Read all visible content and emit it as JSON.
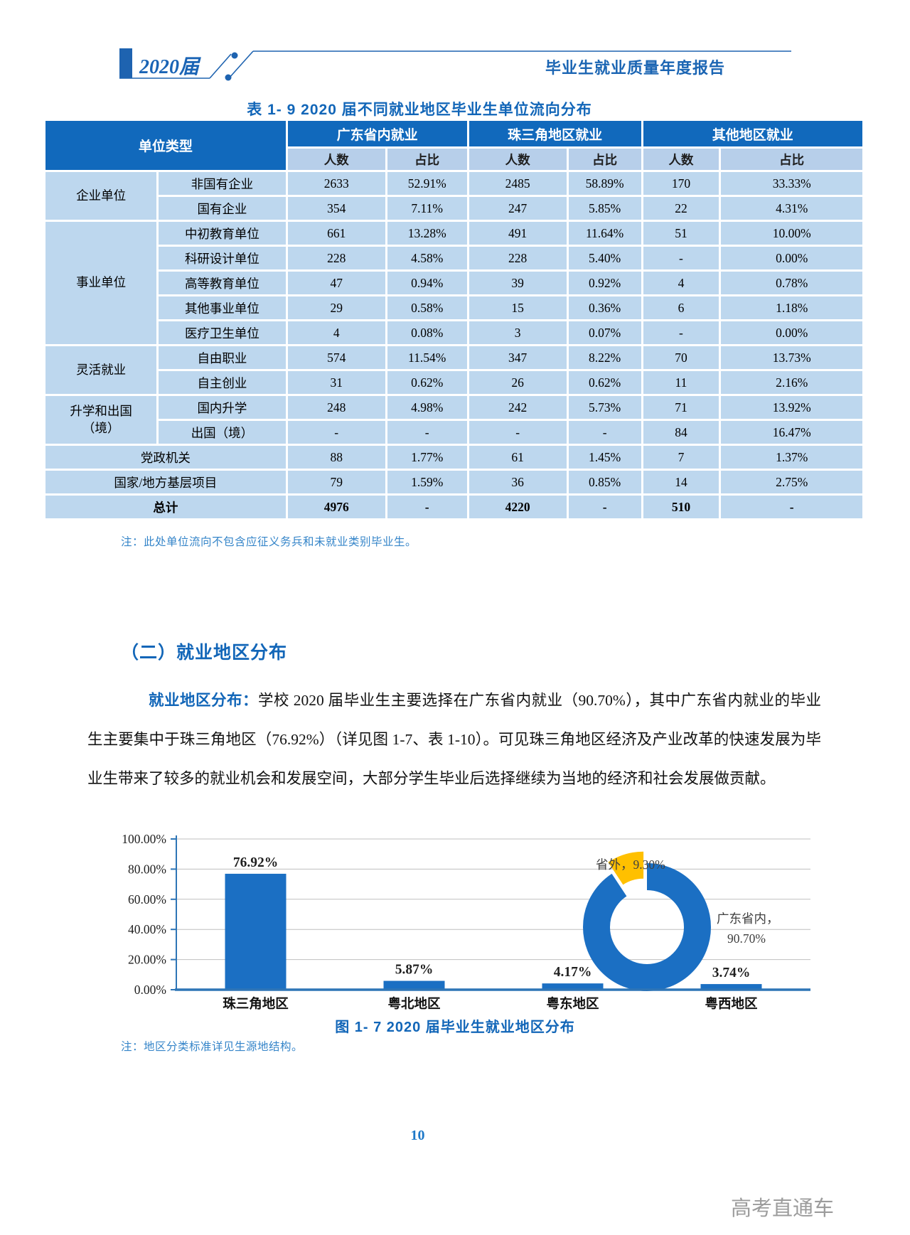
{
  "header": {
    "year_badge": "2020届",
    "report_title": "毕业生就业质量年度报告"
  },
  "table": {
    "title": "表 1- 9  2020 届不同就业地区毕业生单位流向分布",
    "corner_header": "单位类型",
    "group_headers": [
      "广东省内就业",
      "珠三角地区就业",
      "其他地区就业"
    ],
    "sub_headers": [
      "人数",
      "占比"
    ],
    "rows": [
      {
        "category": "企业单位",
        "category_span": 2,
        "label": "非国有企业",
        "values": [
          "2633",
          "52.91%",
          "2485",
          "58.89%",
          "170",
          "33.33%"
        ]
      },
      {
        "label": "国有企业",
        "values": [
          "354",
          "7.11%",
          "247",
          "5.85%",
          "22",
          "4.31%"
        ]
      },
      {
        "category": "事业单位",
        "category_span": 5,
        "label": "中初教育单位",
        "values": [
          "661",
          "13.28%",
          "491",
          "11.64%",
          "51",
          "10.00%"
        ]
      },
      {
        "label": "科研设计单位",
        "values": [
          "228",
          "4.58%",
          "228",
          "5.40%",
          "-",
          "0.00%"
        ]
      },
      {
        "label": "高等教育单位",
        "values": [
          "47",
          "0.94%",
          "39",
          "0.92%",
          "4",
          "0.78%"
        ]
      },
      {
        "label": "其他事业单位",
        "values": [
          "29",
          "0.58%",
          "15",
          "0.36%",
          "6",
          "1.18%"
        ]
      },
      {
        "label": "医疗卫生单位",
        "values": [
          "4",
          "0.08%",
          "3",
          "0.07%",
          "-",
          "0.00%"
        ]
      },
      {
        "category": "灵活就业",
        "category_span": 2,
        "label": "自由职业",
        "values": [
          "574",
          "11.54%",
          "347",
          "8.22%",
          "70",
          "13.73%"
        ]
      },
      {
        "label": "自主创业",
        "values": [
          "31",
          "0.62%",
          "26",
          "0.62%",
          "11",
          "2.16%"
        ]
      },
      {
        "category": "升学和出国\n（境）",
        "category_span": 2,
        "label": "国内升学",
        "values": [
          "248",
          "4.98%",
          "242",
          "5.73%",
          "71",
          "13.92%"
        ]
      },
      {
        "label": "出国（境）",
        "values": [
          "-",
          "-",
          "-",
          "-",
          "84",
          "16.47%"
        ]
      },
      {
        "label": "党政机关",
        "full_width": true,
        "values": [
          "88",
          "1.77%",
          "61",
          "1.45%",
          "7",
          "1.37%"
        ]
      },
      {
        "label": "国家/地方基层项目",
        "full_width": true,
        "values": [
          "79",
          "1.59%",
          "36",
          "0.85%",
          "14",
          "2.75%"
        ]
      },
      {
        "label": "总计",
        "full_width": true,
        "bold": true,
        "values": [
          "4976",
          "-",
          "4220",
          "-",
          "510",
          "-"
        ]
      }
    ],
    "note": "注：此处单位流向不包含应征义务兵和未就业类别毕业生。"
  },
  "section": {
    "heading": "（二）就业地区分布"
  },
  "paragraph": {
    "lead": "就业地区分布：",
    "text": "学校 2020 届毕业生主要选择在广东省内就业（90.70%），其中广东省内就业的毕业生主要集中于珠三角地区（76.92%）（详见图 1-7、表 1-10）。可见珠三角地区经济及产业改革的快速发展为毕业生带来了较多的就业机会和发展空间，大部分学生毕业后选择继续为当地的经济和社会发展做贡献。"
  },
  "figure": {
    "caption": "图 1- 7  2020 届毕业生就业地区分布",
    "note": "注：地区分类标准详见生源地结构。"
  },
  "page_number": "10",
  "watermark": "高考直通车",
  "colors": {
    "header_blue": "#1169bc",
    "light_cell": "#bdd7ee",
    "bar_blue": "#1b6fc3",
    "donut_yellow": "#ffc000",
    "axis_blue": "#2e75b6",
    "grid_gray": "#bfbfbf"
  },
  "chart_data": [
    {
      "type": "bar",
      "categories": [
        "珠三角地区",
        "粤北地区",
        "粤东地区",
        "粤西地区"
      ],
      "values": [
        76.92,
        5.87,
        4.17,
        3.74
      ],
      "value_labels": [
        "76.92%",
        "5.87%",
        "4.17%",
        "3.74%"
      ],
      "ylim": [
        0,
        100
      ],
      "yticks": [
        0,
        20,
        40,
        60,
        80,
        100
      ],
      "ytick_labels": [
        "0.00%",
        "20.00%",
        "40.00%",
        "60.00%",
        "80.00%",
        "100.00%"
      ],
      "grid": true,
      "legend": "none",
      "bar_color": "#1b6fc3"
    },
    {
      "type": "pie",
      "donut": true,
      "slices": [
        {
          "label": "广东省内",
          "value": 90.7,
          "label_lines": [
            "广东省内，",
            "90.70%"
          ],
          "color": "#1b6fc3",
          "exploded": false
        },
        {
          "label": "省外",
          "value": 9.3,
          "label_lines": [
            "省外，9.30%"
          ],
          "color": "#ffc000",
          "exploded": true
        }
      ]
    }
  ]
}
